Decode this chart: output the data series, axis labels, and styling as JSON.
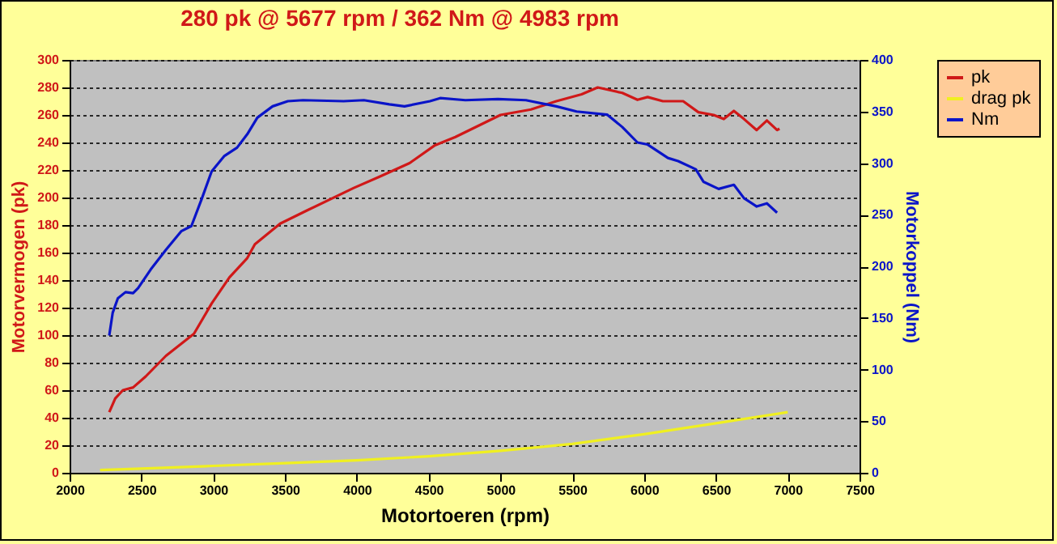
{
  "chart_data": {
    "type": "line",
    "title": "280 pk @ 5677 rpm / 362 Nm @ 4983 rpm",
    "xlabel": "Motortoeren (rpm)",
    "ylabel": "Motorvermogen (pk)",
    "y2label": "Motorkoppel (Nm)",
    "xlim": [
      2000,
      7500
    ],
    "xticks": [
      2000,
      2500,
      3000,
      3500,
      4000,
      4500,
      5000,
      5500,
      6000,
      6500,
      7000,
      7500
    ],
    "ylim": [
      0,
      300
    ],
    "yticks": [
      0,
      20,
      40,
      60,
      80,
      100,
      120,
      140,
      160,
      180,
      200,
      220,
      240,
      260,
      280,
      300
    ],
    "y2lim": [
      0,
      400
    ],
    "y2ticks": [
      0,
      50,
      100,
      150,
      200,
      250,
      300,
      350,
      400
    ],
    "grid": "y",
    "legend": "top right",
    "line_style": "solid",
    "marker": "none",
    "series": [
      {
        "name": "pk",
        "color": "#d01818",
        "x": [
          2276,
          2318,
          2371,
          2442,
          2530,
          2671,
          2866,
          2989,
          3113,
          3237,
          3290,
          3466,
          3661,
          3979,
          4155,
          4367,
          4544,
          4686,
          5000,
          5212,
          5389,
          5565,
          5677,
          5848,
          5954,
          6025,
          6131,
          6272,
          6378,
          6484,
          6555,
          6625,
          6696,
          6784,
          6855,
          6926,
          6943
        ],
        "values": [
          44,
          54,
          60,
          62,
          70,
          85,
          101,
          123,
          142,
          156,
          166,
          181,
          191,
          207,
          215,
          225,
          238,
          244,
          260,
          264,
          270,
          275,
          280,
          276,
          271,
          273,
          270,
          270,
          262,
          260,
          257,
          263,
          257,
          249,
          256,
          249,
          250
        ]
      },
      {
        "name": "drag pk",
        "color": "#f0f020",
        "x": [
          2212,
          2500,
          3000,
          3500,
          4000,
          4500,
          5000,
          5500,
          6000,
          6500,
          7000
        ],
        "values": [
          2,
          3,
          5,
          7,
          9,
          12,
          16,
          21,
          28,
          36,
          44
        ]
      },
      {
        "name": "Nm",
        "color": "#0a14c8",
        "axis": "y2",
        "x": [
          2276,
          2300,
          2336,
          2389,
          2442,
          2477,
          2565,
          2671,
          2777,
          2848,
          2919,
          2989,
          3078,
          3166,
          3237,
          3307,
          3413,
          3519,
          3625,
          3908,
          4049,
          4226,
          4332,
          4509,
          4580,
          4756,
          4983,
          5177,
          5389,
          5530,
          5742,
          5848,
          5954,
          6025,
          6166,
          6237,
          6360,
          6413,
          6519,
          6625,
          6696,
          6784,
          6855,
          6926
        ],
        "values": [
          133,
          155,
          169,
          175,
          174,
          179,
          197,
          216,
          234,
          239,
          265,
          292,
          307,
          315,
          328,
          344,
          355,
          360,
          361,
          360,
          361,
          357,
          355,
          360,
          363,
          361,
          362,
          361,
          355,
          350,
          347,
          335,
          320,
          318,
          305,
          302,
          294,
          282,
          275,
          279,
          266,
          258,
          261,
          252
        ]
      }
    ]
  }
}
